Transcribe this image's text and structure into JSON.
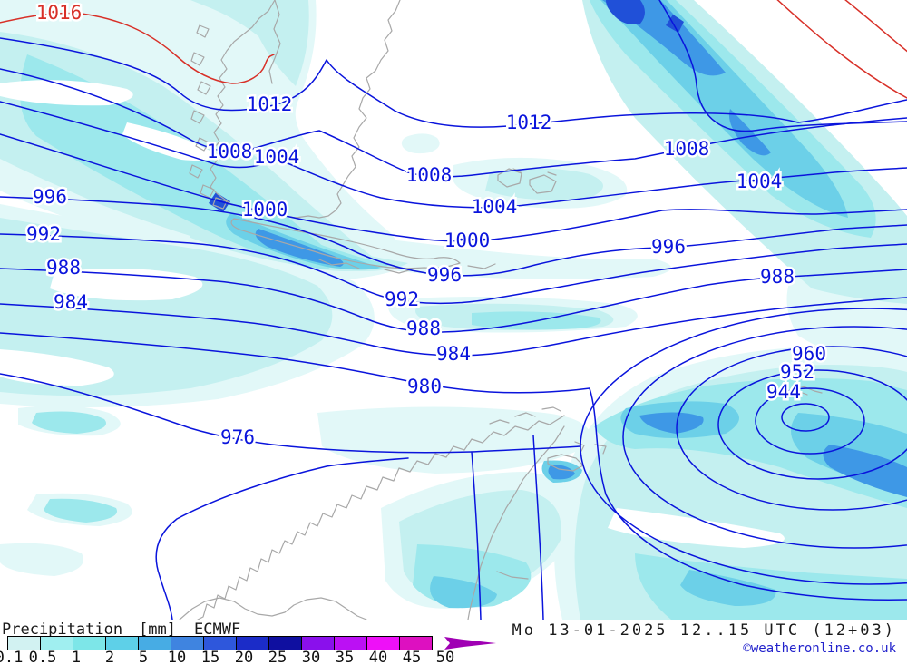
{
  "map": {
    "colors": {
      "isobar_blue": "#0a14dc",
      "isobar_red": "#d83028",
      "coastline_gray": "#a8a8a8",
      "precip_fill_levels": [
        "#e2f8f8",
        "#c4f0f0",
        "#9ce8ec",
        "#6cd0e8",
        "#3e98e6",
        "#2050d8"
      ]
    },
    "isobar_labels": [
      {
        "text": "1016",
        "color": "red"
      },
      {
        "text": "1012",
        "color": "blue"
      },
      {
        "text": "1012",
        "color": "blue"
      },
      {
        "text": "1008",
        "color": "blue"
      },
      {
        "text": "1004",
        "color": "blue"
      },
      {
        "text": "1008",
        "color": "blue"
      },
      {
        "text": "1004",
        "color": "blue"
      },
      {
        "text": "1008",
        "color": "blue"
      },
      {
        "text": "1004",
        "color": "blue"
      },
      {
        "text": "996",
        "color": "blue"
      },
      {
        "text": "1000",
        "color": "blue"
      },
      {
        "text": "1000",
        "color": "blue"
      },
      {
        "text": "996",
        "color": "blue"
      },
      {
        "text": "992",
        "color": "blue"
      },
      {
        "text": "988",
        "color": "blue"
      },
      {
        "text": "984",
        "color": "blue"
      },
      {
        "text": "992",
        "color": "blue"
      },
      {
        "text": "988",
        "color": "blue"
      },
      {
        "text": "984",
        "color": "blue"
      },
      {
        "text": "980",
        "color": "blue"
      },
      {
        "text": "996",
        "color": "blue"
      },
      {
        "text": "988",
        "color": "blue"
      },
      {
        "text": "960",
        "color": "blue"
      },
      {
        "text": "952",
        "color": "blue"
      },
      {
        "text": "944",
        "color": "blue"
      },
      {
        "text": "976",
        "color": "blue"
      }
    ]
  },
  "legend": {
    "title": "Precipitation",
    "unit": "[mm]",
    "model": "ECMWF",
    "scale_values": [
      "0.1",
      "0.5",
      "1",
      "2",
      "5",
      "10",
      "15",
      "20",
      "25",
      "30",
      "35",
      "40",
      "45",
      "50"
    ],
    "scale_colors": [
      "#d2f2f2",
      "#a0eff0",
      "#7de6e8",
      "#5ed0e8",
      "#47ace4",
      "#3f84e0",
      "#2e57dc",
      "#1b2cc8",
      "#0f0fa0",
      "#8a10ec",
      "#bb10f4",
      "#ee10f8",
      "#dd10c0"
    ],
    "arrow_color": "#a000b4",
    "datetime": "Mo 13-01-2025 12..15 UTC (12+03)",
    "copyright": "©weatheronline.co.uk"
  }
}
